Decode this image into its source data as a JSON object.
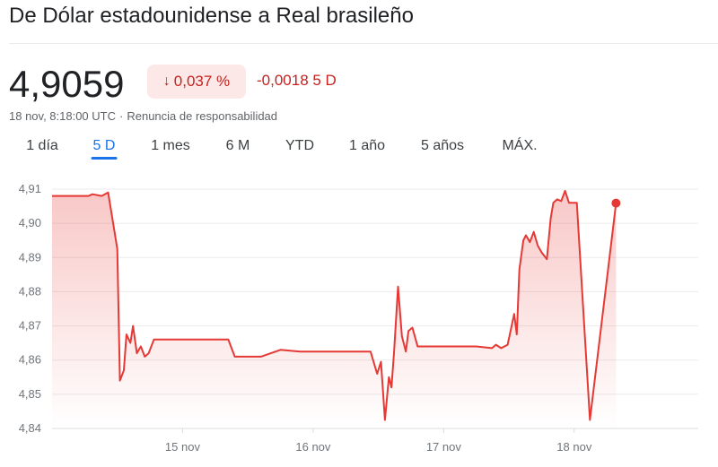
{
  "header": {
    "title": "De Dólar estadounidense a Real brasileño"
  },
  "quote": {
    "price": "4,9059",
    "percent_change": "0,037 %",
    "abs_change": "-0,0018 5 D",
    "timestamp": "18 nov, 8:18:00 UTC",
    "disclaimer": "Renuncia de responsabilidad",
    "direction_icon": "arrow-down-icon"
  },
  "tabs": [
    {
      "label": "1 día",
      "active": false
    },
    {
      "label": "5 D",
      "active": true
    },
    {
      "label": "1 mes",
      "active": false
    },
    {
      "label": "6 M",
      "active": false
    },
    {
      "label": "YTD",
      "active": false
    },
    {
      "label": "1 año",
      "active": false
    },
    {
      "label": "5 años",
      "active": false
    },
    {
      "label": "MÁX.",
      "active": false
    }
  ],
  "colors": {
    "line": "#e53935",
    "negative": "#c5221f",
    "accent": "#1a73e8",
    "grid": "#ebebeb"
  },
  "chart_data": {
    "type": "line",
    "ylim": [
      4.84,
      4.91
    ],
    "yticks": [
      "4,91",
      "4,90",
      "4,89",
      "4,88",
      "4,87",
      "4,86",
      "4,85",
      "4,84"
    ],
    "ytick_values": [
      4.91,
      4.9,
      4.89,
      4.88,
      4.87,
      4.86,
      4.85,
      4.84
    ],
    "x_unit": "day index (0 = 15 nov)",
    "xlim": [
      -1.0,
      3.95
    ],
    "xticks": [
      "15 nov",
      "16 nov",
      "17 nov",
      "18 nov"
    ],
    "xtick_values": [
      0,
      1,
      2,
      3
    ],
    "grid": true,
    "series": [
      {
        "x": [
          -1.0,
          -0.72,
          -0.69,
          -0.62,
          -0.57,
          -0.53,
          -0.5,
          -0.48,
          -0.45,
          -0.43,
          -0.4,
          -0.38,
          -0.35,
          -0.32,
          -0.29,
          -0.26,
          -0.22,
          -0.1,
          0.05,
          0.2,
          0.35,
          0.4,
          0.44,
          0.6,
          0.75,
          0.9,
          1.05,
          1.2,
          1.38,
          1.44,
          1.49,
          1.52,
          1.55,
          1.58,
          1.6,
          1.62,
          1.65,
          1.68,
          1.71,
          1.73,
          1.76,
          1.8,
          1.86,
          1.95,
          2.1,
          2.25,
          2.37,
          2.4,
          2.44,
          2.49,
          2.54,
          2.56,
          2.58,
          2.61,
          2.63,
          2.66,
          2.69,
          2.72,
          2.75,
          2.79,
          2.82,
          2.84,
          2.87,
          2.9,
          2.93,
          2.96,
          2.99,
          3.02,
          3.12,
          3.32
        ],
        "y": [
          4.908,
          4.908,
          4.9085,
          4.908,
          4.909,
          4.8995,
          4.8925,
          4.854,
          4.857,
          4.8675,
          4.865,
          4.87,
          4.862,
          4.864,
          4.861,
          4.862,
          4.866,
          4.866,
          4.866,
          4.866,
          4.866,
          4.861,
          4.861,
          4.861,
          4.863,
          4.8625,
          4.8625,
          4.8625,
          4.8625,
          4.8625,
          4.856,
          4.8595,
          4.8425,
          4.855,
          4.852,
          4.8625,
          4.8815,
          4.867,
          4.8625,
          4.8685,
          4.8695,
          4.864,
          4.864,
          4.864,
          4.864,
          4.864,
          4.8635,
          4.8645,
          4.8635,
          4.8645,
          4.8735,
          4.8675,
          4.8865,
          4.895,
          4.8965,
          4.8945,
          4.8975,
          4.8935,
          4.8915,
          4.8895,
          4.9015,
          4.906,
          4.907,
          4.9065,
          4.9095,
          4.906,
          4.906,
          4.906,
          4.8425,
          4.9059
        ]
      }
    ],
    "last_point": {
      "x": 3.32,
      "y": 4.9059
    }
  }
}
